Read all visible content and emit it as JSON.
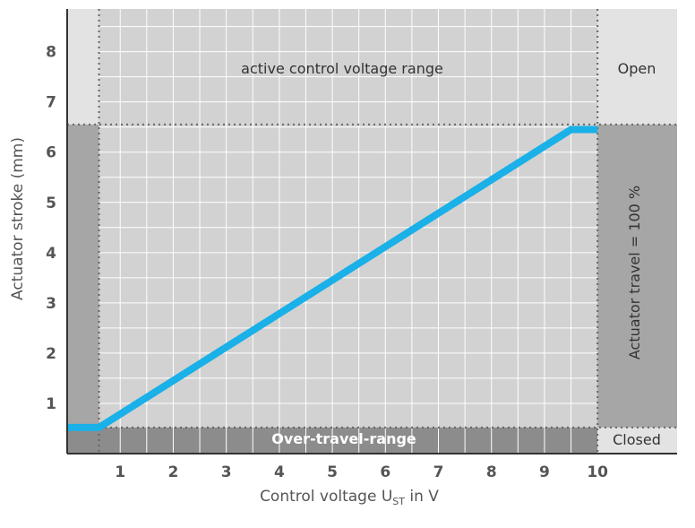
{
  "chart_data": {
    "type": "line",
    "xlabel": "Control voltage U",
    "xlabel_sub": "ST",
    "xlabel_suffix": " in V",
    "ylabel": "Actuator stroke (mm)",
    "xlim": [
      0,
      11.5
    ],
    "ylim": [
      0,
      8.85
    ],
    "xticks": [
      1,
      2,
      3,
      4,
      5,
      6,
      7,
      8,
      9,
      10
    ],
    "yticks": [
      1,
      2,
      3,
      4,
      5,
      6,
      7,
      8
    ],
    "grid": true,
    "series": [
      {
        "color": "#1ab0e8",
        "x": [
          0.0,
          0.6,
          9.5,
          10.0
        ],
        "y": [
          0.52,
          0.52,
          6.45,
          6.45
        ]
      }
    ],
    "annotations": {
      "active_range": "active control voltage range",
      "open": "Open",
      "closed": "Closed",
      "over_travel": "Over-travel-range",
      "actuator_travel": "Actuator travel = 100 %"
    },
    "regions": {
      "active_x": [
        0.6,
        10.0
      ],
      "travel_y": [
        0.52,
        6.55
      ]
    },
    "colors": {
      "line": "#1ab0e8",
      "light_gray": "#e3e3e3",
      "mid_gray": "#d2d2d2",
      "dark_gray": "#a6a6a6",
      "band_gray": "#8c8c8c"
    }
  }
}
